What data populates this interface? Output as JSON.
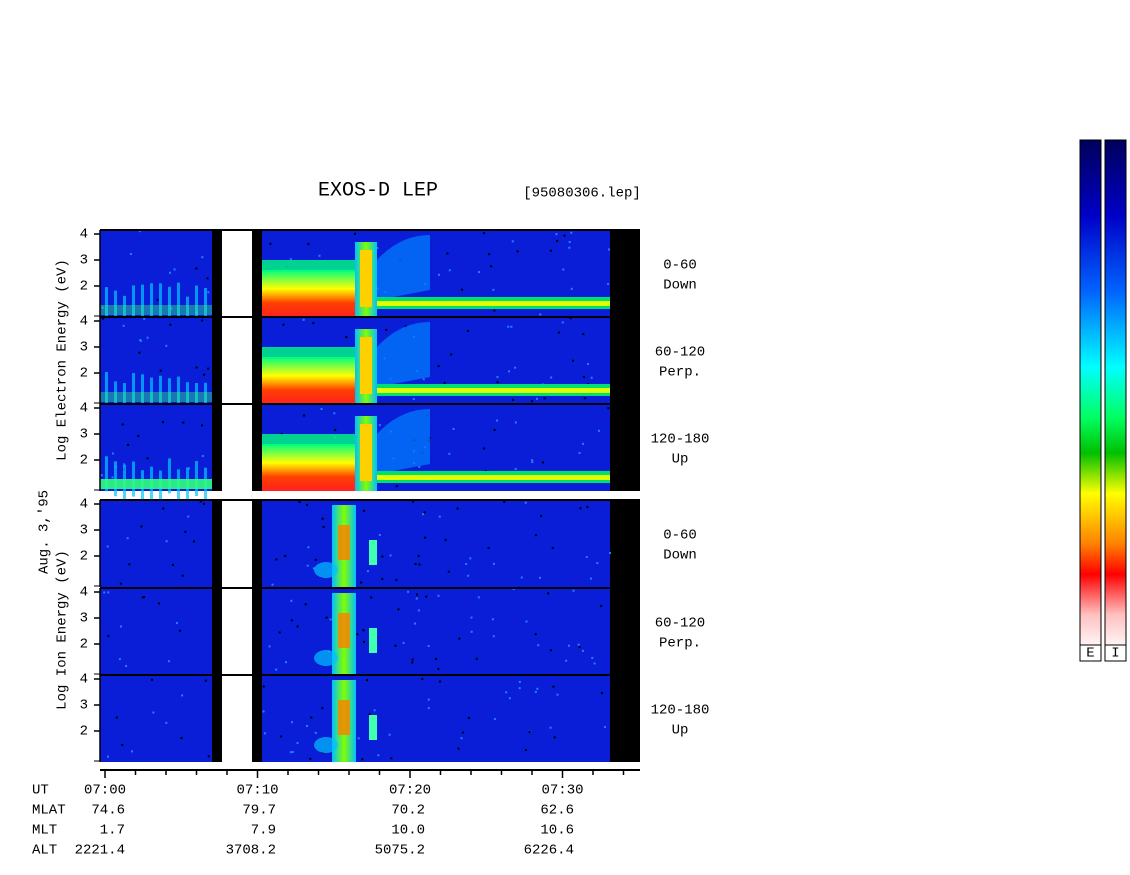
{
  "title": "EXOS-D LEP",
  "file": "[95080306.lep]",
  "date": "Aug. 3,'95",
  "electron": {
    "axis_label": "Log Electron Energy (eV)",
    "panels": [
      {
        "range": "0-60",
        "direction": "Down",
        "yticks": [
          4,
          3,
          2
        ]
      },
      {
        "range": "60-120",
        "direction": "Perp.",
        "yticks": [
          4,
          3,
          2
        ]
      },
      {
        "range": "120-180",
        "direction": "Up",
        "yticks": [
          4,
          3,
          2
        ]
      }
    ]
  },
  "ion": {
    "axis_label": "Log Ion Energy (eV)",
    "panels": [
      {
        "range": "0-60",
        "direction": "Down",
        "yticks": [
          4,
          3,
          2
        ]
      },
      {
        "range": "60-120",
        "direction": "Perp.",
        "yticks": [
          4,
          3,
          2
        ]
      },
      {
        "range": "120-180",
        "direction": "Up",
        "yticks": [
          4,
          3,
          2
        ]
      }
    ]
  },
  "ephemeris": {
    "header": "UT",
    "times": [
      "07:00",
      "07:10",
      "07:20",
      "07:30"
    ],
    "rows": [
      {
        "name": "MLAT",
        "values": [
          "74.6",
          "79.7",
          "70.2",
          "62.6"
        ]
      },
      {
        "name": "MLT",
        "values": [
          "1.7",
          "7.9",
          "10.0",
          "10.6"
        ]
      },
      {
        "name": "ALT",
        "values": [
          "2221.4",
          "3708.2",
          "5075.2",
          "6226.4"
        ]
      }
    ]
  },
  "colorbars": [
    "E",
    "I"
  ]
}
